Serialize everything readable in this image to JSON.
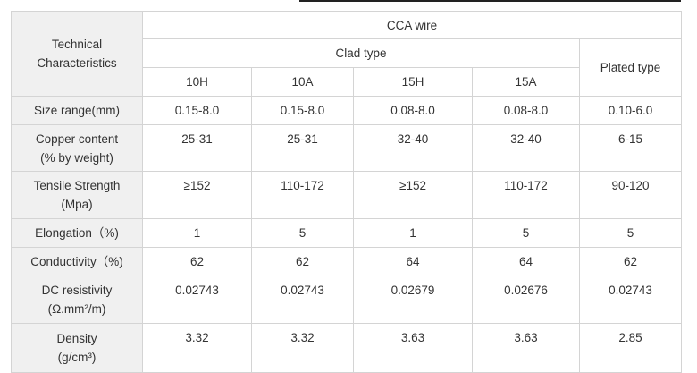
{
  "header": {
    "row_label": "Technical Characteristics",
    "group": "CCA wire",
    "subgroup": "Clad type",
    "plated": "Plated type",
    "columns": [
      "10H",
      "10A",
      "15H",
      "15A"
    ]
  },
  "rows": [
    {
      "label": "Size range(mm)",
      "values": [
        "0.15-8.0",
        "0.15-8.0",
        "0.08-8.0",
        "0.08-8.0",
        "0.10-6.0"
      ]
    },
    {
      "label": "Copper content\n(% by weight)",
      "values": [
        "25-31",
        "25-31",
        "32-40",
        "32-40",
        "6-15"
      ]
    },
    {
      "label": "Tensile Strength\n(Mpa)",
      "values": [
        "≥152",
        "110-172",
        "≥152",
        "110-172",
        "90-120"
      ]
    },
    {
      "label": "Elongation（%)",
      "values": [
        "1",
        "5",
        "1",
        "5",
        "5"
      ]
    },
    {
      "label": "Conductivity（%)",
      "values": [
        "62",
        "62",
        "64",
        "64",
        "62"
      ]
    },
    {
      "label": "DC resistivity\n(Ω.mm²/m)",
      "values": [
        "0.02743",
        "0.02743",
        "0.02679",
        "0.02676",
        "0.02743"
      ]
    },
    {
      "label": "Density\n(g/cm³)",
      "values": [
        "3.32",
        "3.32",
        "3.63",
        "3.63",
        "2.85"
      ]
    }
  ]
}
